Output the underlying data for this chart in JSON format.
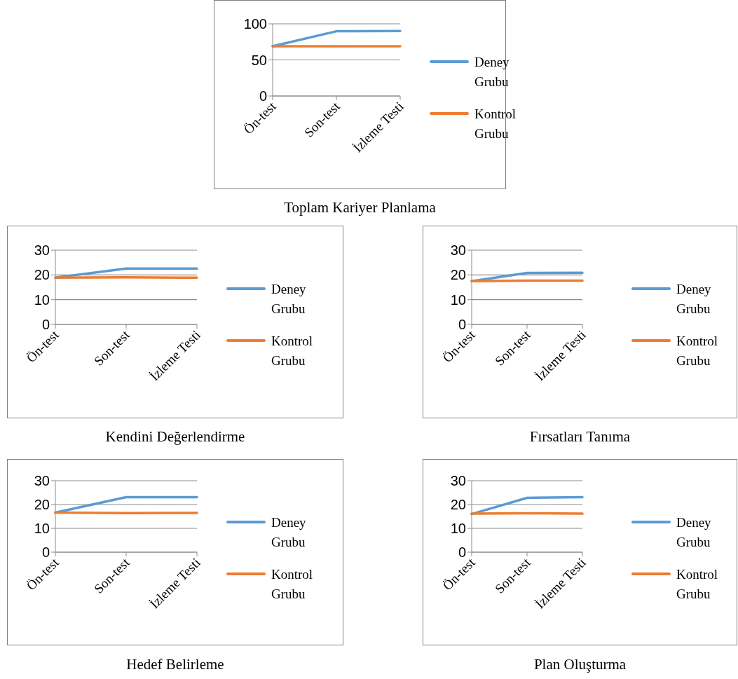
{
  "chart_data": [
    {
      "type": "line",
      "title": "Toplam Kariyer Planlama",
      "categories": [
        "Ön-test",
        "Son-test",
        "İzleme Testi"
      ],
      "series": [
        {
          "name": "Deney Grubu",
          "color": "#5b9bd5",
          "values": [
            69,
            89.7,
            90
          ]
        },
        {
          "name": "Kontrol Grubu",
          "color": "#ed7d31",
          "values": [
            69,
            69,
            69
          ]
        }
      ],
      "ylim": [
        0,
        100
      ],
      "yticks": [
        0,
        50,
        100
      ],
      "grid": "y",
      "legend": "right",
      "marker": "none",
      "line_style": "solid"
    },
    {
      "type": "line",
      "title": "Kendini Değerlendirme",
      "categories": [
        "Ön-test",
        "Son-test",
        "İzleme Testi"
      ],
      "series": [
        {
          "name": "Deney Grubu",
          "color": "#5b9bd5",
          "values": [
            18.9,
            22.6,
            22.6
          ]
        },
        {
          "name": "Kontrol Grubu",
          "color": "#ed7d31",
          "values": [
            18.9,
            19.0,
            18.9
          ]
        }
      ],
      "ylim": [
        0,
        30
      ],
      "yticks": [
        0,
        10,
        20,
        30
      ],
      "grid": "y",
      "legend": "right",
      "marker": "none",
      "line_style": "solid"
    },
    {
      "type": "line",
      "title": "Fırsatları Tanıma",
      "categories": [
        "Ön-test",
        "Son-test",
        "İzleme Testi"
      ],
      "series": [
        {
          "name": "Deney Grubu",
          "color": "#5b9bd5",
          "values": [
            17.5,
            20.8,
            20.9
          ]
        },
        {
          "name": "Kontrol Grubu",
          "color": "#ed7d31",
          "values": [
            17.5,
            17.7,
            17.7
          ]
        }
      ],
      "ylim": [
        0,
        30
      ],
      "yticks": [
        0,
        10,
        20,
        30
      ],
      "grid": "y",
      "legend": "right",
      "marker": "none",
      "line_style": "solid"
    },
    {
      "type": "line",
      "title": "Hedef Belirleme",
      "categories": [
        "Ön-test",
        "Son-test",
        "İzleme Testi"
      ],
      "series": [
        {
          "name": "Deney Grubu",
          "color": "#5b9bd5",
          "values": [
            16.6,
            23.1,
            23.1
          ]
        },
        {
          "name": "Kontrol Grubu",
          "color": "#ed7d31",
          "values": [
            16.6,
            16.4,
            16.5
          ]
        }
      ],
      "ylim": [
        0,
        30
      ],
      "yticks": [
        0,
        10,
        20,
        30
      ],
      "grid": "y",
      "legend": "right",
      "marker": "none",
      "line_style": "solid"
    },
    {
      "type": "line",
      "title": "Plan Oluşturma",
      "categories": [
        "Ön-test",
        "Son-test",
        "İzleme Testi"
      ],
      "series": [
        {
          "name": "Deney Grubu",
          "color": "#5b9bd5",
          "values": [
            16.0,
            22.8,
            23.1
          ]
        },
        {
          "name": "Kontrol Grubu",
          "color": "#ed7d31",
          "values": [
            16.2,
            16.3,
            16.2
          ]
        }
      ],
      "ylim": [
        0,
        30
      ],
      "yticks": [
        0,
        10,
        20,
        30
      ],
      "grid": "y",
      "legend": "right",
      "marker": "none",
      "line_style": "solid"
    }
  ]
}
